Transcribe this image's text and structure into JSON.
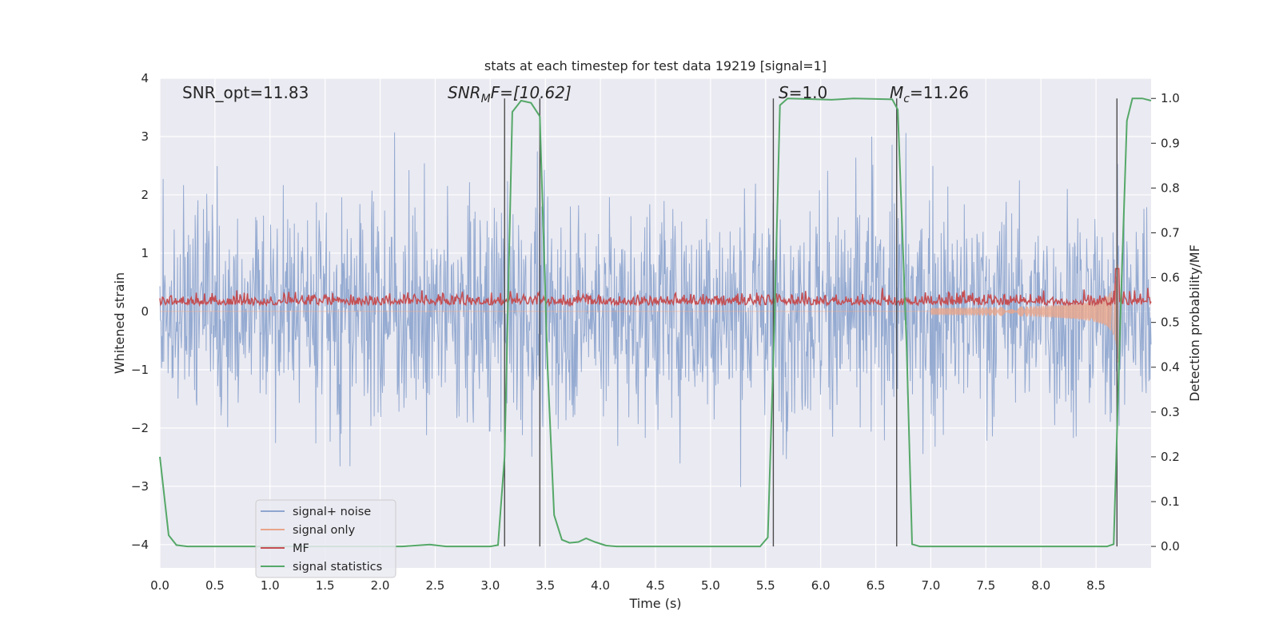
{
  "chart_data": {
    "type": "line",
    "title": "stats at each timestep for test data 19219 [signal=1]",
    "xlabel": "Time (s)",
    "ylabel_left": "Whitened strain",
    "ylabel_right": "Detection probability/MF",
    "xlim": [
      0.0,
      9.0
    ],
    "ylim_left": [
      -4.4,
      4.0
    ],
    "ylim_right": [
      -0.048,
      1.045
    ],
    "x_ticks": [
      "0.0",
      "0.5",
      "1.0",
      "1.5",
      "2.0",
      "2.5",
      "3.0",
      "3.5",
      "4.0",
      "4.5",
      "5.0",
      "5.5",
      "6.0",
      "6.5",
      "7.0",
      "7.5",
      "8.0",
      "8.5"
    ],
    "y_ticks_left": [
      "4",
      "3",
      "2",
      "1",
      "0",
      "−1",
      "−2",
      "−3",
      "−4"
    ],
    "y_ticks_right": [
      "1.0",
      "0.9",
      "0.8",
      "0.7",
      "0.6",
      "0.5",
      "0.4",
      "0.3",
      "0.2",
      "0.1",
      "0.0"
    ],
    "grid": true,
    "legend_position": "lower-left",
    "annotations": {
      "snr_opt": "SNR_opt=11.83",
      "snr_mf_main": "SNR",
      "snr_mf_sub": "M",
      "snr_mf_rest": "F=[10.62]",
      "s_italic": "S",
      "s_rest": "=1.0",
      "mc_main": "M",
      "mc_sub": "c",
      "mc_rest": "=11.26"
    },
    "series": [
      {
        "name": "signal+ noise",
        "color": "#8fa6cf",
        "description_range": [
          -2.8,
          3.6
        ]
      },
      {
        "name": "signal only",
        "color": "#e8a58a"
      },
      {
        "name": "MF",
        "color": "#c44e52"
      },
      {
        "name": "signal statistics",
        "color": "#55a868",
        "points": [
          [
            0.0,
            0.2
          ],
          [
            0.08,
            0.025
          ],
          [
            0.15,
            0.003
          ],
          [
            0.25,
            0.0
          ],
          [
            2.2,
            0.0
          ],
          [
            2.45,
            0.004
          ],
          [
            2.6,
            0.0
          ],
          [
            3.0,
            0.0
          ],
          [
            3.07,
            0.003
          ],
          [
            3.13,
            0.2
          ],
          [
            3.2,
            0.97
          ],
          [
            3.28,
            0.995
          ],
          [
            3.37,
            0.99
          ],
          [
            3.45,
            0.96
          ],
          [
            3.52,
            0.4
          ],
          [
            3.58,
            0.07
          ],
          [
            3.65,
            0.015
          ],
          [
            3.72,
            0.008
          ],
          [
            3.8,
            0.01
          ],
          [
            3.87,
            0.018
          ],
          [
            3.95,
            0.01
          ],
          [
            4.05,
            0.002
          ],
          [
            4.15,
            0.0
          ],
          [
            5.45,
            0.0
          ],
          [
            5.52,
            0.02
          ],
          [
            5.58,
            0.5
          ],
          [
            5.63,
            0.985
          ],
          [
            5.7,
            1.0
          ],
          [
            6.1,
            0.997
          ],
          [
            6.3,
            1.0
          ],
          [
            6.65,
            0.998
          ],
          [
            6.7,
            0.975
          ],
          [
            6.78,
            0.45
          ],
          [
            6.83,
            0.005
          ],
          [
            6.9,
            0.0
          ],
          [
            8.6,
            0.0
          ],
          [
            8.66,
            0.005
          ],
          [
            8.72,
            0.5
          ],
          [
            8.78,
            0.95
          ],
          [
            8.83,
            1.0
          ],
          [
            8.92,
            1.0
          ],
          [
            9.0,
            0.995
          ]
        ]
      }
    ],
    "vertical_lines_x": [
      3.13,
      3.45,
      5.57,
      6.69,
      8.69
    ]
  }
}
